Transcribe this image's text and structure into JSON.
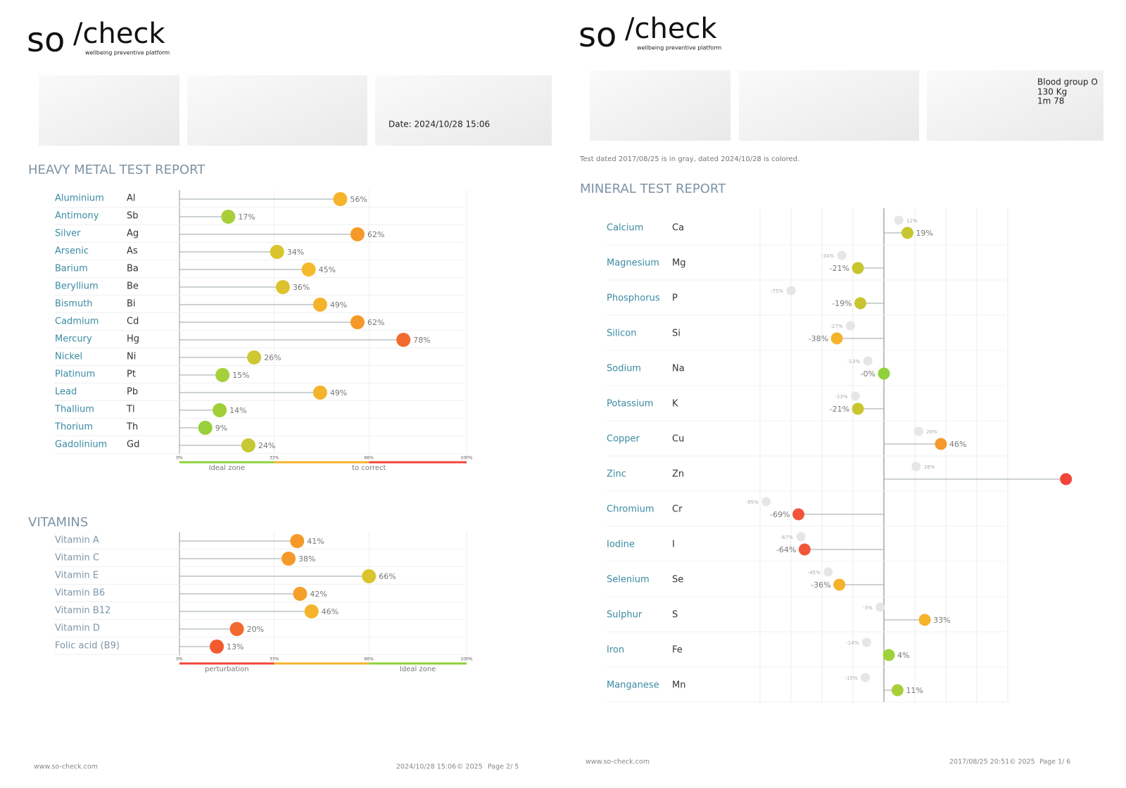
{
  "left_page": {
    "logo": {
      "brand_a": "so",
      "brand_b": "/check",
      "tagline": "wellbeing preventive platform"
    },
    "date": "Date: 2024/10/28 15:06",
    "heavy_metals": {
      "type": "lollipop",
      "title": "HEAVY METAL TEST REPORT",
      "names": [
        "Aluminium",
        "Antimony",
        "Silver",
        "Arsenic",
        "Barium",
        "Beryllium",
        "Bismuth",
        "Cadmium",
        "Mercury",
        "Nickel",
        "Platinum",
        "Lead",
        "Thallium",
        "Thorium",
        "Gadolinium"
      ],
      "symbols": [
        "Al",
        "Sb",
        "Ag",
        "As",
        "Ba",
        "Be",
        "Bi",
        "Cd",
        "Hg",
        "Ni",
        "Pt",
        "Pb",
        "Tl",
        "Th",
        "Gd"
      ],
      "values": [
        56,
        17,
        62,
        34,
        45,
        36,
        49,
        62,
        78,
        26,
        15,
        49,
        14,
        9,
        24
      ],
      "value_labels": [
        "56%",
        "17%",
        "62%",
        "34%",
        "45%",
        "36%",
        "49%",
        "62%",
        "78%",
        "26%",
        "15%",
        "49%",
        "14%",
        "9%",
        "24%"
      ],
      "colors": [
        "#f7b32b",
        "#a8cf3a",
        "#f59a2a",
        "#d9c42e",
        "#f5b92a",
        "#dcc22e",
        "#f5b32b",
        "#f59a2a",
        "#f26a2f",
        "#cfc734",
        "#a6d03a",
        "#f5b32b",
        "#a0cf3a",
        "#98cf3a",
        "#c7c835"
      ],
      "xlim": [
        0,
        100
      ],
      "xticks": [
        {
          "value": 0,
          "label": "0%"
        },
        {
          "value": 33,
          "label": "33%"
        },
        {
          "value": 66,
          "label": "66%"
        },
        {
          "value": 100,
          "label": "100%"
        }
      ],
      "zone_colors": [
        "#8fd13a",
        "#f5b32b",
        "#f2453a"
      ],
      "zone_labels": [
        "Ideal zone",
        "to correct"
      ]
    },
    "vitamins": {
      "type": "lollipop",
      "title": "VITAMINS",
      "names": [
        "Vitamin A",
        "Vitamin C",
        "Vitamin E",
        "Vitamin B6",
        "Vitamin B12",
        "Vitamin D",
        "Folic acid (B9)"
      ],
      "values": [
        41,
        38,
        66,
        42,
        46,
        20,
        13
      ],
      "value_labels": [
        "41%",
        "38%",
        "66%",
        "42%",
        "46%",
        "20%",
        "13%"
      ],
      "colors": [
        "#f59a2a",
        "#f59a2a",
        "#d9c42e",
        "#f5a02a",
        "#f5b32b",
        "#f26a2f",
        "#f25a2f"
      ],
      "xlim": [
        0,
        100
      ],
      "xticks": [
        {
          "value": 0,
          "label": "0%"
        },
        {
          "value": 33,
          "label": "33%"
        },
        {
          "value": 66,
          "label": "66%"
        },
        {
          "value": 100,
          "label": "100%"
        }
      ],
      "zone_colors": [
        "#f2453a",
        "#f5b32b",
        "#8fd13a"
      ],
      "zone_labels": [
        "perturbation",
        "Ideal zone"
      ]
    },
    "footer": {
      "site": "www.so-check.com",
      "date": "2024/10/28 15:06",
      "copyright": "© 2025",
      "page": "Page 2/ 5"
    }
  },
  "right_page": {
    "logo": {
      "brand_a": "so",
      "brand_b": "/check",
      "tagline": "wellbeing preventive platform"
    },
    "profile": [
      "Blood group O",
      "130 Kg",
      "1m 78"
    ],
    "note": "Test dated 2017/08/25 is in gray, dated 2024/10/28 is colored.",
    "minerals": {
      "type": "diverging-lollipop",
      "title": "MINERAL TEST REPORT",
      "names": [
        "Calcium",
        "Magnesium",
        "Phosphorus",
        "Silicon",
        "Sodium",
        "Potassium",
        "Copper",
        "Zinc",
        "Chromium",
        "Iodine",
        "Selenium",
        "Sulphur",
        "Iron",
        "Manganese"
      ],
      "symbols": [
        "Ca",
        "Mg",
        "P",
        "Si",
        "Na",
        "K",
        "Cu",
        "Zn",
        "Cr",
        "I",
        "Se",
        "S",
        "Fe",
        "Mn"
      ],
      "values": [
        19,
        -21,
        -19,
        -38,
        0,
        -21,
        46,
        147,
        -69,
        -64,
        -36,
        33,
        4,
        11
      ],
      "value_labels": [
        "19%",
        "-21%",
        "-19%",
        "-38%",
        "-0%",
        "-21%",
        "46%",
        null,
        "-69%",
        "-64%",
        "-36%",
        "33%",
        "4%",
        "11%"
      ],
      "colors": [
        "#c8c52e",
        "#c8c52e",
        "#c8c52e",
        "#f5b32b",
        "#8fd13a",
        "#c8c52e",
        "#f59a2a",
        "#f2453a",
        "#f2553a",
        "#f2553a",
        "#f5b32b",
        "#f5b32b",
        "#9fd13a",
        "#a8cf3a"
      ],
      "previous_values": [
        12,
        -34,
        -75,
        -27,
        -13,
        -23,
        28,
        26,
        -95,
        -67,
        -45,
        -3,
        -14,
        -15
      ],
      "previous_value_labels": [
        "12%",
        "-34%",
        "-75%",
        "-27%",
        "-13%",
        "-23%",
        "28%",
        "26%",
        "-95%",
        "-67%",
        "-45%",
        "-3%",
        "-14%",
        "-15%"
      ],
      "previous_color": "#e6e6e6",
      "xlim": [
        -100,
        100
      ],
      "xticks": [
        -100,
        -75,
        -50,
        -25,
        0,
        25,
        50,
        75,
        100
      ]
    },
    "footer": {
      "site": "www.so-check.com",
      "date": "2017/08/25 20:51",
      "copyright": "© 2025",
      "page": "Page 1/ 6"
    }
  }
}
